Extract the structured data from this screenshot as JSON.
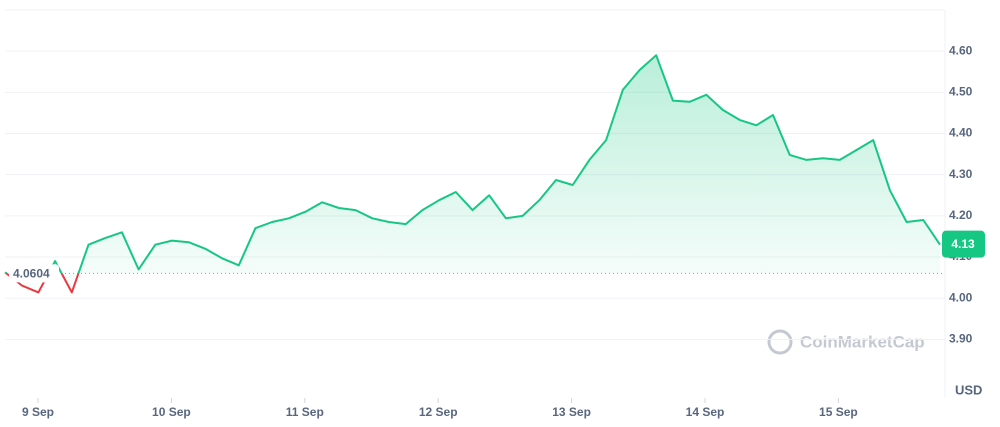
{
  "chart_data": {
    "type": "line",
    "x_labels": [
      "9 Sep",
      "10 Sep",
      "11 Sep",
      "12 Sep",
      "13 Sep",
      "14 Sep",
      "15 Sep"
    ],
    "values": [
      4.063,
      4.031,
      4.014,
      4.09,
      4.014,
      4.13,
      4.146,
      4.16,
      4.07,
      4.13,
      4.14,
      4.136,
      4.12,
      4.097,
      4.08,
      4.17,
      4.185,
      4.194,
      4.21,
      4.233,
      4.219,
      4.214,
      4.194,
      4.185,
      4.18,
      4.214,
      4.238,
      4.258,
      4.214,
      4.25,
      4.194,
      4.2,
      4.238,
      4.287,
      4.275,
      4.336,
      4.384,
      4.506,
      4.554,
      4.59,
      4.48,
      4.477,
      4.494,
      4.457,
      4.433,
      4.42,
      4.445,
      4.348,
      4.336,
      4.34,
      4.336,
      4.36,
      4.384,
      4.262,
      4.185,
      4.19,
      4.13
    ],
    "color_up": "#16c784",
    "color_down": "#ea3943",
    "reference_line": 4.0604,
    "ylim": [
      3.76,
      4.7
    ],
    "yticks": [
      {
        "value": 3.9,
        "label": "3.90"
      },
      {
        "value": 4.0,
        "label": "4.00"
      },
      {
        "value": 4.1,
        "label": "4.10"
      },
      {
        "value": 4.2,
        "label": "4.20"
      },
      {
        "value": 4.3,
        "label": "4.30"
      },
      {
        "value": 4.4,
        "label": "4.40"
      },
      {
        "value": 4.5,
        "label": "4.50"
      },
      {
        "value": 4.6,
        "label": "4.60"
      }
    ],
    "y_label": "USD",
    "watermark": "CoinMarketCap",
    "grid": true
  }
}
